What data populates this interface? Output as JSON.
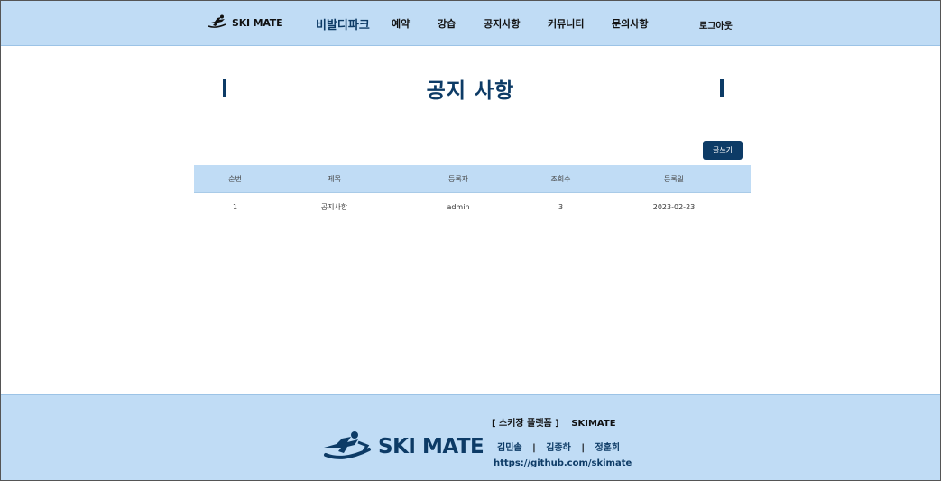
{
  "header": {
    "logo_text": "SKI MATE",
    "nav": {
      "brand": "비발디파크",
      "reservation": "예약",
      "lesson": "강습",
      "notice": "공지사항",
      "community": "커뮤니티",
      "inquiry": "문의사항"
    },
    "logout": "로그아웃"
  },
  "page": {
    "title": "공지 사항",
    "write_button": "글쓰기"
  },
  "table": {
    "columns": [
      "순번",
      "제목",
      "등록자",
      "조회수",
      "등록일"
    ],
    "rows": [
      [
        "1",
        "공지사항",
        "admin",
        "3",
        "2023-02-23"
      ]
    ]
  },
  "footer": {
    "logo_text": "SKI MATE",
    "platform_label": "[ 스키장 플랫폼 ]",
    "platform_name": "SKIMATE",
    "members": [
      "김민솔",
      "김종하",
      "정훈희"
    ],
    "separator": "|",
    "github": "https://github.com/skimate"
  },
  "colors": {
    "header_bg": "#c0dcf5",
    "accent": "#0d3b66"
  }
}
